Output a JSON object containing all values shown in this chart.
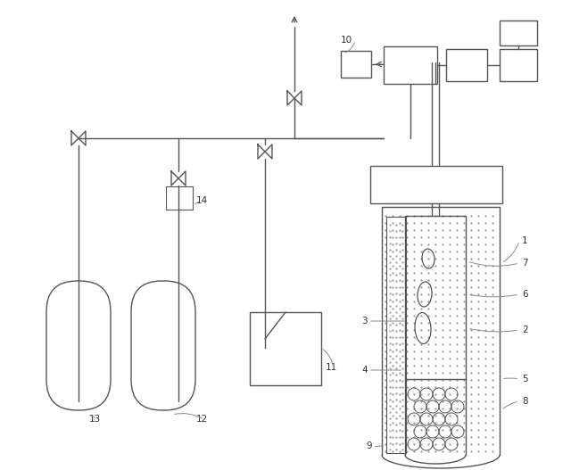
{
  "lc": "#555555",
  "lw": 1.0,
  "bg": "white",
  "figsize": [
    6.4,
    5.27
  ],
  "dpi": 100
}
